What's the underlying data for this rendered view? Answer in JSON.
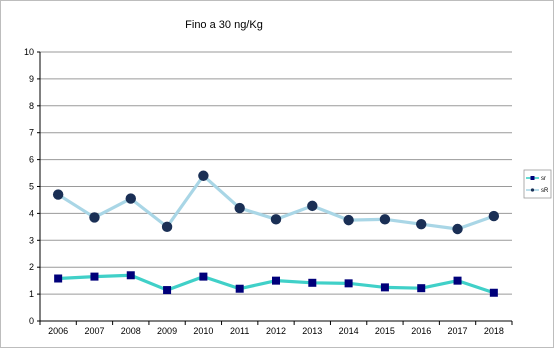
{
  "chart_data": {
    "type": "line",
    "title": "Fino a 30 ng/Kg",
    "xlabel": "",
    "ylabel": "",
    "categories": [
      "2006",
      "2007",
      "2008",
      "2009",
      "2010",
      "2011",
      "2012",
      "2013",
      "2014",
      "2015",
      "2016",
      "2017",
      "2018"
    ],
    "ylim": [
      0,
      10
    ],
    "yticks": [
      "0",
      "1",
      "2",
      "3",
      "4",
      "5",
      "6",
      "7",
      "8",
      "9",
      "10"
    ],
    "grid": true,
    "legend_position": "right",
    "series": [
      {
        "name": "sr",
        "values": [
          1.58,
          1.65,
          1.7,
          1.15,
          1.65,
          1.2,
          1.5,
          1.42,
          1.4,
          1.25,
          1.22,
          1.5,
          1.05
        ],
        "line_color": "#40d0c8",
        "marker": "square",
        "marker_color": "#00007a"
      },
      {
        "name": "sR",
        "values": [
          4.7,
          3.85,
          4.55,
          3.5,
          5.4,
          4.2,
          3.78,
          4.28,
          3.75,
          3.78,
          3.6,
          3.42,
          3.9
        ],
        "line_color": "#a9d6e6",
        "marker": "circle",
        "marker_color": "#1a2f55"
      }
    ]
  }
}
